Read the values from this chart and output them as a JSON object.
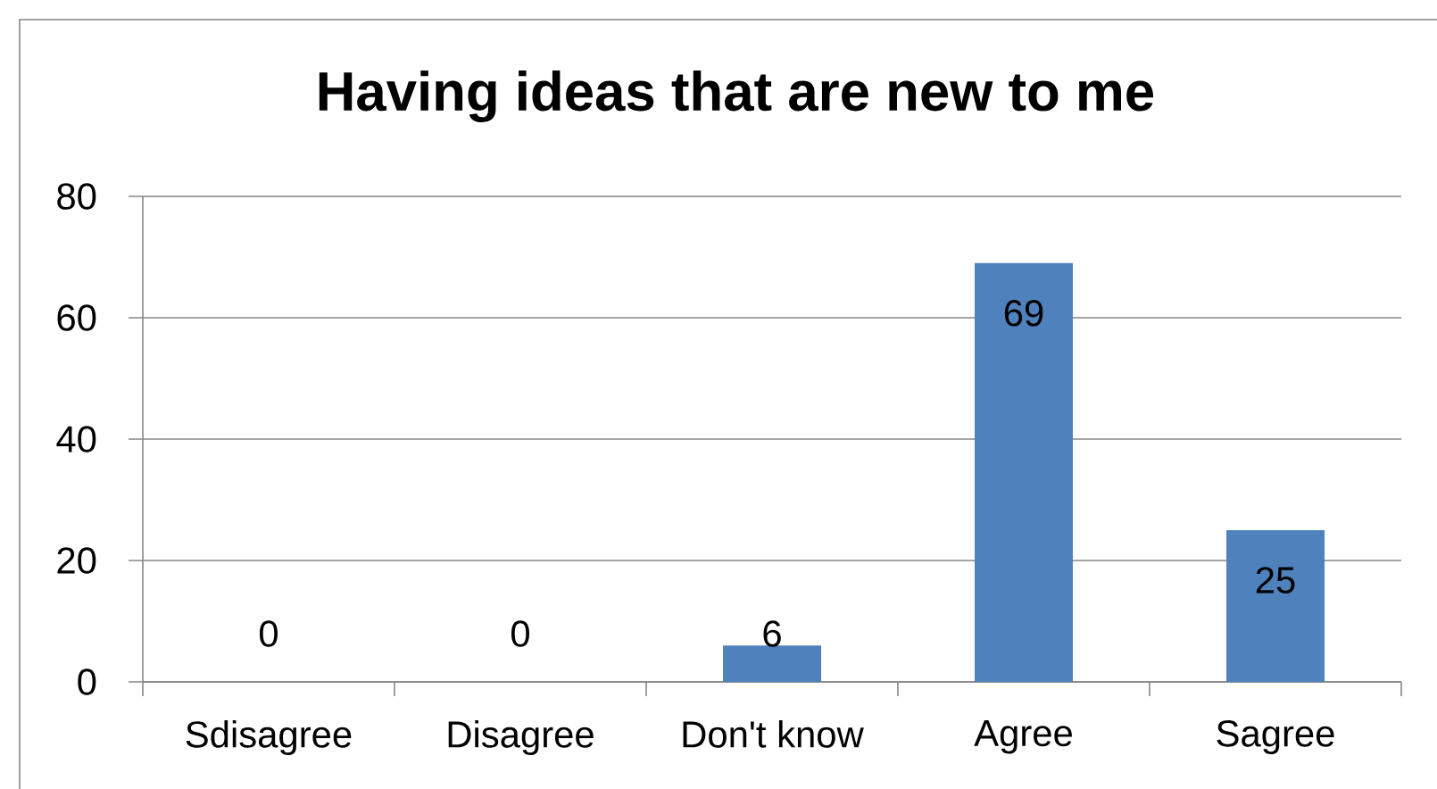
{
  "chart_data": {
    "type": "bar",
    "title": "Having ideas that are new to me",
    "categories": [
      "Sdisagree",
      "Disagree",
      "Don't know",
      "Agree",
      "Sagree"
    ],
    "values": [
      0,
      0,
      6,
      69,
      25
    ],
    "color": "#4f81bd",
    "ylim": [
      0,
      80
    ],
    "yticks": [
      0,
      20,
      40,
      60,
      80
    ],
    "grid": "y",
    "data_labels": true
  }
}
